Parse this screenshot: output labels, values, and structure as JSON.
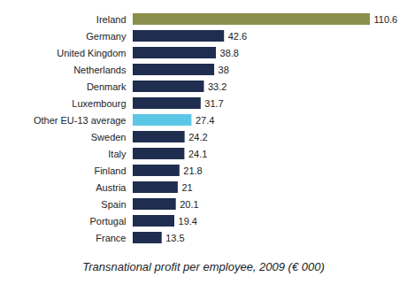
{
  "chart_data": {
    "type": "bar",
    "orientation": "horizontal",
    "title": "Transnational profit per employee, 2009 (€ 000)",
    "categories": [
      "Ireland",
      "Germany",
      "United Kingdom",
      "Netherlands",
      "Denmark",
      "Luxembourg",
      "Other EU-13 average",
      "Sweden",
      "Italy",
      "Finland",
      "Austria",
      "Spain",
      "Portugal",
      "France"
    ],
    "values": [
      110.6,
      42.6,
      38.8,
      38,
      33.2,
      31.7,
      27.4,
      24.2,
      24.1,
      21.8,
      21,
      20.1,
      19.4,
      13.5
    ],
    "colors": [
      "#8b8f4c",
      "#1f2d4f",
      "#1f2d4f",
      "#1f2d4f",
      "#1f2d4f",
      "#1f2d4f",
      "#5cc6e6",
      "#1f2d4f",
      "#1f2d4f",
      "#1f2d4f",
      "#1f2d4f",
      "#1f2d4f",
      "#1f2d4f",
      "#1f2d4f"
    ],
    "xlim": [
      0,
      110.6
    ],
    "data_labels": true,
    "tick_labels": "y",
    "grid": false
  }
}
